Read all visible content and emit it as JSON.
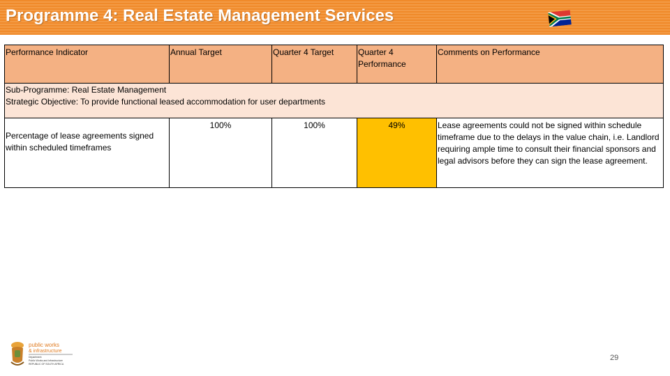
{
  "slide": {
    "title": "Programme 4: Real Estate Management Services",
    "page_number": "29"
  },
  "table": {
    "headers": [
      "Performance Indicator",
      "Annual Target",
      "Quarter 4 Target",
      "Quarter 4 Performance",
      "Comments on Performance"
    ],
    "subprogramme": {
      "line1": "Sub-Programme: Real Estate Management",
      "line2": "Strategic Objective: To provide functional leased accommodation for user departments"
    },
    "rows": [
      {
        "indicator": "Percentage of lease agreements signed within scheduled timeframes",
        "annual_target": "100%",
        "q4_target": "100%",
        "q4_performance": "49%",
        "comment": "Lease agreements could not be signed within schedule timeframe due to the delays in the value chain, i.e. Landlord requiring ample time to consult their financial sponsors and legal advisors before they can sign the lease agreement."
      }
    ]
  },
  "logo": {
    "line1": "public works",
    "line2": "& infrastructure",
    "line3": "Department:",
    "line4": "Public Works and Infrastructure",
    "line5": "REPUBLIC OF SOUTH AFRICA"
  },
  "colors": {
    "title_bar": "#f08a2a",
    "header_fill": "#f4b183",
    "subprogramme_fill": "#fce4d6",
    "performance_fill": "#ffc000"
  }
}
